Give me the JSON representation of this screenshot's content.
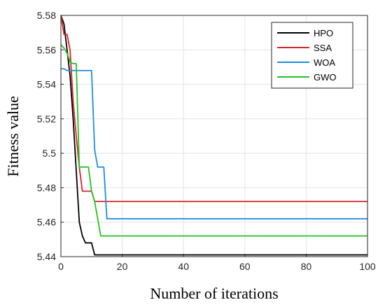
{
  "chart_data": {
    "type": "line",
    "title": "",
    "xlabel": "Number of iterations",
    "ylabel": "Fitness value",
    "xlim": [
      0,
      100
    ],
    "ylim": [
      5.44,
      5.58
    ],
    "xticks": [
      0,
      20,
      40,
      60,
      80,
      100
    ],
    "xtick_labels": [
      "0",
      "20",
      "40",
      "60",
      "80",
      "100"
    ],
    "yticks": [
      5.44,
      5.46,
      5.48,
      5.5,
      5.52,
      5.54,
      5.56,
      5.58
    ],
    "ytick_labels": [
      "5.44",
      "5.46",
      "5.48",
      "5.5",
      "5.52",
      "5.54",
      "5.56",
      "5.58"
    ],
    "grid": true,
    "legend_position": "top-right",
    "series": [
      {
        "name": "HPO",
        "color": "#000000",
        "x": [
          0,
          1,
          2,
          3,
          4,
          5,
          6,
          7,
          8,
          9,
          10,
          11,
          15,
          20,
          100
        ],
        "y": [
          5.58,
          5.575,
          5.56,
          5.545,
          5.52,
          5.49,
          5.46,
          5.452,
          5.448,
          5.448,
          5.448,
          5.441,
          5.441,
          5.441,
          5.441
        ]
      },
      {
        "name": "SSA",
        "color": "#d62728",
        "x": [
          0,
          1,
          2,
          3,
          4,
          5,
          6,
          7,
          8,
          9,
          10,
          11,
          12,
          13,
          14,
          20,
          100
        ],
        "y": [
          5.58,
          5.569,
          5.569,
          5.56,
          5.53,
          5.51,
          5.492,
          5.478,
          5.478,
          5.478,
          5.478,
          5.472,
          5.472,
          5.472,
          5.472,
          5.472,
          5.472
        ]
      },
      {
        "name": "WOA",
        "color": "#1f8ee0",
        "x": [
          0,
          1,
          2,
          3,
          4,
          5,
          6,
          7,
          8,
          9,
          10,
          11,
          12,
          13,
          14,
          15,
          20,
          100
        ],
        "y": [
          5.549,
          5.549,
          5.548,
          5.548,
          5.548,
          5.548,
          5.548,
          5.548,
          5.548,
          5.548,
          5.548,
          5.502,
          5.492,
          5.492,
          5.492,
          5.462,
          5.462,
          5.462
        ]
      },
      {
        "name": "GWO",
        "color": "#22c322",
        "x": [
          0,
          1,
          2,
          3,
          4,
          5,
          6,
          7,
          8,
          9,
          10,
          11,
          12,
          13,
          14,
          20,
          100
        ],
        "y": [
          5.563,
          5.561,
          5.558,
          5.553,
          5.552,
          5.552,
          5.492,
          5.492,
          5.492,
          5.492,
          5.478,
          5.472,
          5.462,
          5.452,
          5.452,
          5.452,
          5.452
        ]
      }
    ]
  }
}
